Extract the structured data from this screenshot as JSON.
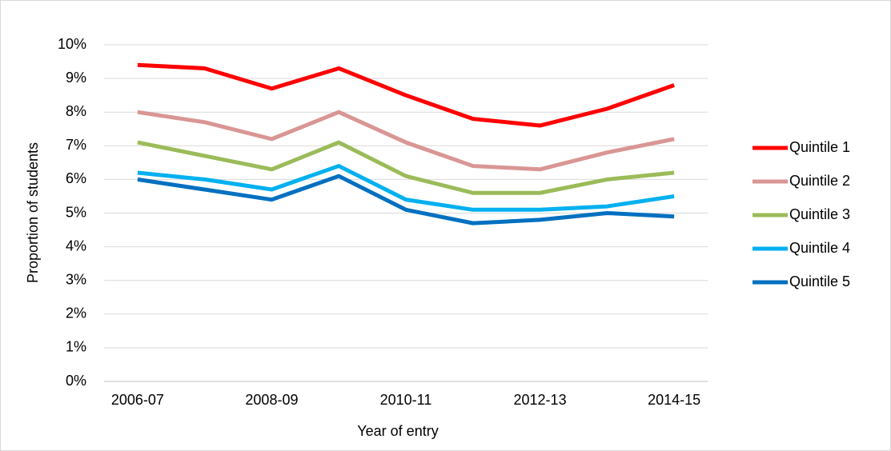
{
  "chart_data": {
    "type": "line",
    "categories": [
      "2006-07",
      null,
      "2008-09",
      null,
      "2010-11",
      null,
      "2012-13",
      null,
      "2014-15"
    ],
    "x_label": "Year of entry",
    "y_label": "Proportion of students",
    "ylim": [
      0,
      10
    ],
    "yticks": [
      {
        "value": 0,
        "label": "0%"
      },
      {
        "value": 1,
        "label": "1%"
      },
      {
        "value": 2,
        "label": "2%"
      },
      {
        "value": 3,
        "label": "3%"
      },
      {
        "value": 4,
        "label": "4%"
      },
      {
        "value": 5,
        "label": "5%"
      },
      {
        "value": 6,
        "label": "6%"
      },
      {
        "value": 7,
        "label": "7%"
      },
      {
        "value": 8,
        "label": "8%"
      },
      {
        "value": 9,
        "label": "9%"
      },
      {
        "value": 10,
        "label": "10%"
      }
    ],
    "grid": true,
    "legend": "right",
    "series": [
      {
        "name": "Quintile 1",
        "color": "#ff0000",
        "values": [
          9.4,
          9.3,
          8.7,
          9.3,
          8.5,
          7.8,
          7.6,
          8.1,
          8.8
        ]
      },
      {
        "name": "Quintile 2",
        "color": "#d99694",
        "values": [
          8.0,
          7.7,
          7.2,
          8.0,
          7.1,
          6.4,
          6.3,
          6.8,
          7.2
        ]
      },
      {
        "name": "Quintile 3",
        "color": "#9bbb59",
        "values": [
          7.1,
          6.7,
          6.3,
          7.1,
          6.1,
          5.6,
          5.6,
          6.0,
          6.2
        ]
      },
      {
        "name": "Quintile 4",
        "color": "#00b0f0",
        "values": [
          6.2,
          6.0,
          5.7,
          6.4,
          5.4,
          5.1,
          5.1,
          5.2,
          5.5
        ]
      },
      {
        "name": "Quintile 5",
        "color": "#0070c0",
        "values": [
          6.0,
          5.7,
          5.4,
          6.1,
          5.1,
          4.7,
          4.8,
          5.0,
          4.9
        ]
      }
    ]
  }
}
